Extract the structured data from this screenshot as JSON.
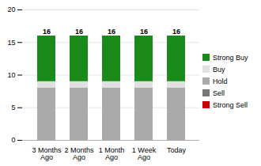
{
  "chart_data": {
    "type": "bar",
    "stacked": true,
    "categories": [
      "3 Months\nAgo",
      "2 Months\nAgo",
      "1 Month\nAgo",
      "1 Week\nAgo",
      "Today"
    ],
    "series": [
      {
        "name": "Strong Sell",
        "color": "#cc0000",
        "values": [
          0,
          0,
          0,
          0,
          0
        ]
      },
      {
        "name": "Sell",
        "color": "#777777",
        "values": [
          0,
          0,
          0,
          0,
          0
        ]
      },
      {
        "name": "Hold",
        "color": "#aaaaaa",
        "values": [
          8,
          8,
          8,
          8,
          8
        ]
      },
      {
        "name": "Buy",
        "color": "#e0e0e0",
        "values": [
          1,
          1,
          1,
          1,
          1
        ]
      },
      {
        "name": "Strong Buy",
        "color": "#1a8a1a",
        "values": [
          7,
          7,
          7,
          7,
          7
        ]
      }
    ],
    "totals": [
      16,
      16,
      16,
      16,
      16
    ],
    "ylim": [
      0,
      20
    ],
    "yticks": [
      0,
      5,
      10,
      15,
      20
    ],
    "grid": true,
    "legend": "right"
  }
}
